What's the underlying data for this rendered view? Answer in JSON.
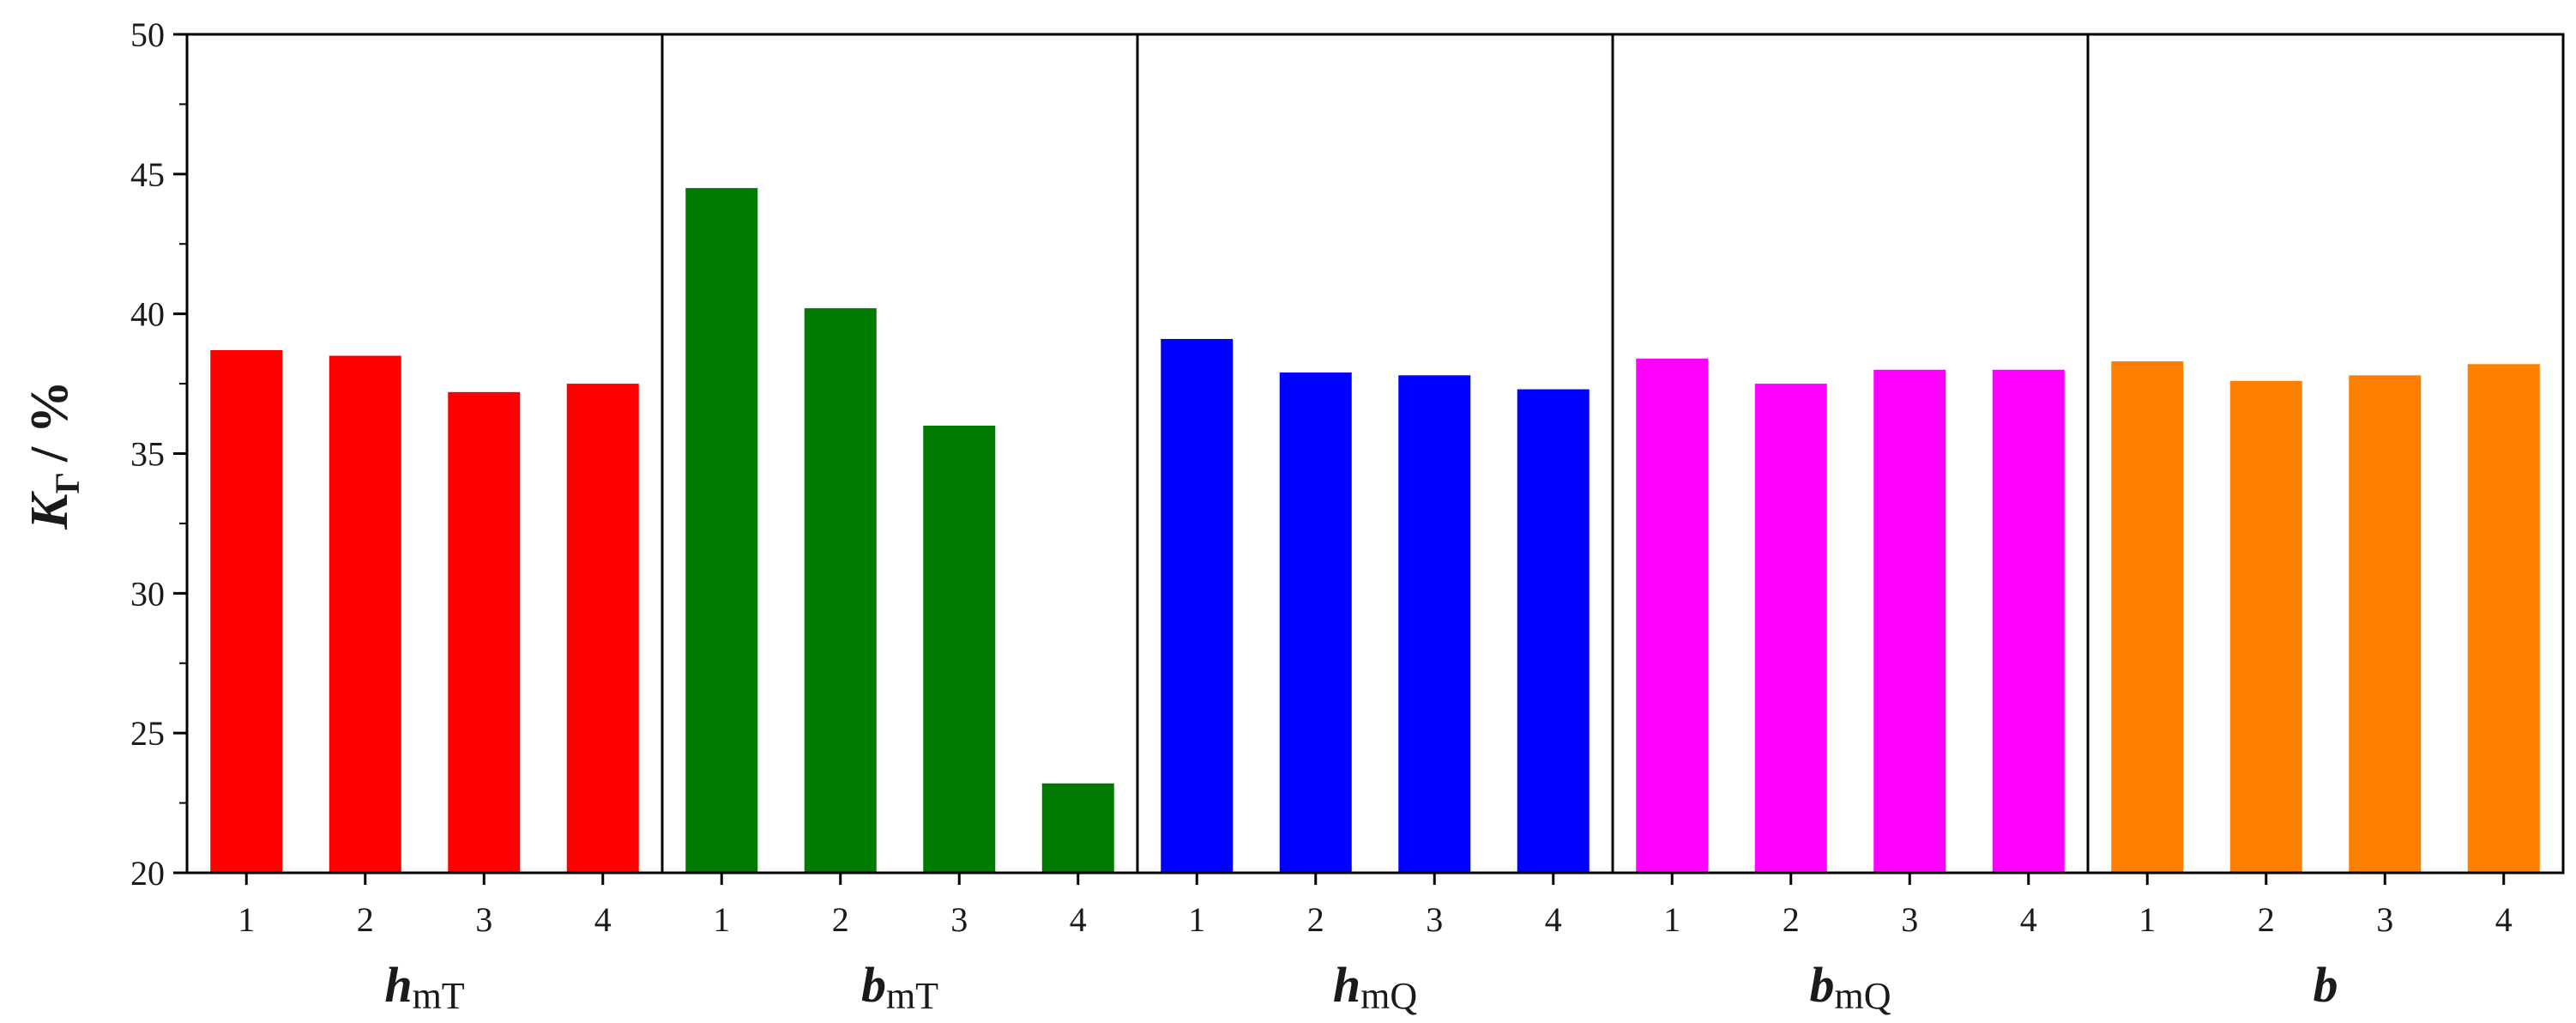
{
  "chart_data": {
    "type": "bar",
    "ylabel": {
      "symbol": "K",
      "subscript": "Γ",
      "unit": "/ %"
    },
    "ylim": [
      20,
      50
    ],
    "yticks": [
      20,
      25,
      30,
      35,
      40,
      45,
      50
    ],
    "grid": false,
    "groups": [
      {
        "label": "h",
        "subscript": "mT",
        "color": "#ff0000",
        "categories": [
          "1",
          "2",
          "3",
          "4"
        ],
        "values": [
          38.7,
          38.5,
          37.2,
          37.5
        ]
      },
      {
        "label": "b",
        "subscript": "mT",
        "color": "#007a00",
        "categories": [
          "1",
          "2",
          "3",
          "4"
        ],
        "values": [
          44.5,
          40.2,
          36.0,
          23.2
        ]
      },
      {
        "label": "h",
        "subscript": "mQ",
        "color": "#0000ff",
        "categories": [
          "1",
          "2",
          "3",
          "4"
        ],
        "values": [
          39.1,
          37.9,
          37.8,
          37.3
        ]
      },
      {
        "label": "b",
        "subscript": "mQ",
        "color": "#ff00ff",
        "categories": [
          "1",
          "2",
          "3",
          "4"
        ],
        "values": [
          38.4,
          37.5,
          38.0,
          38.0
        ]
      },
      {
        "label": "b",
        "subscript": "",
        "color": "#ff7f00",
        "categories": [
          "1",
          "2",
          "3",
          "4"
        ],
        "values": [
          38.3,
          37.6,
          37.8,
          38.2
        ]
      }
    ]
  }
}
